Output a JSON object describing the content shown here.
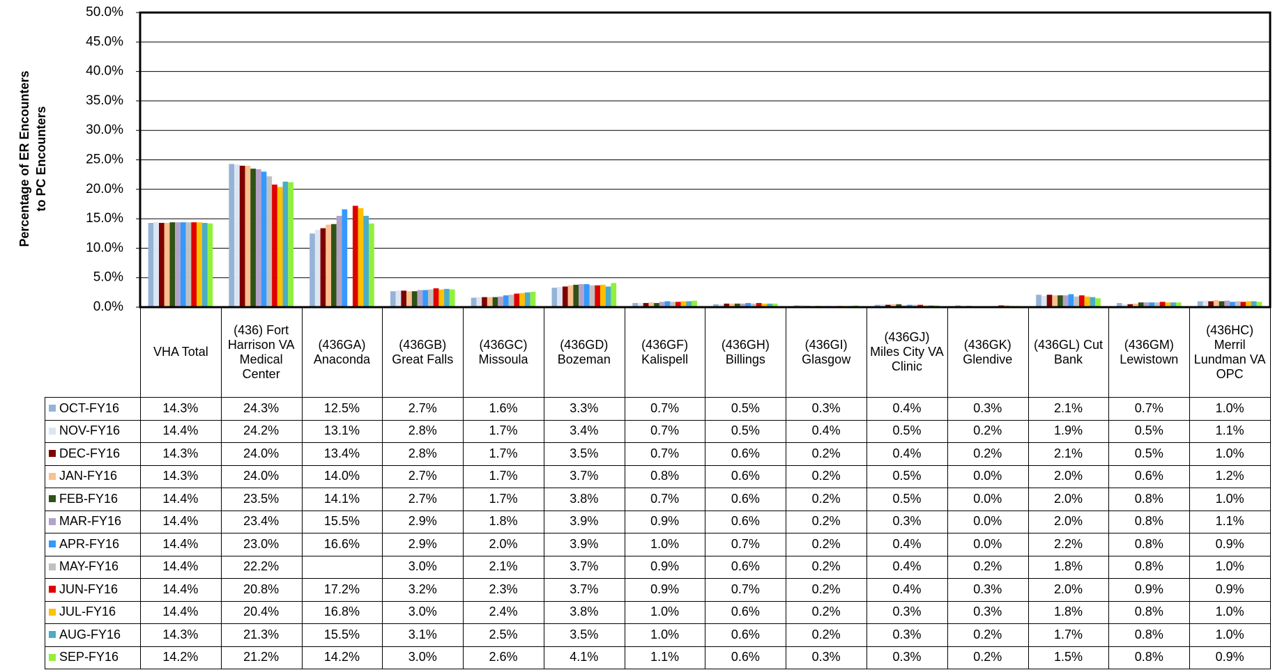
{
  "chart_data": {
    "type": "bar",
    "y_label": [
      "Percentage of ER Encounters",
      "to PC Encounters"
    ],
    "categories": [
      "VHA Total",
      "(436) Fort Harrison VA Medical Center",
      "(436GA) Anaconda",
      "(436GB) Great Falls",
      "(436GC) Missoula",
      "(436GD) Bozeman",
      "(436GF) Kalispell",
      "(436GH) Billings",
      "(436GI) Glasgow",
      "(436GJ) Miles City VA Clinic",
      "(436GK) Glendive",
      "(436GL) Cut Bank",
      "(436GM) Lewistown",
      "(436HC) Merril Lundman VA OPC"
    ],
    "ylim": [
      0,
      50
    ],
    "yticks": [
      {
        "value": 0,
        "label": "0.0%"
      },
      {
        "value": 5,
        "label": "5.0%"
      },
      {
        "value": 10,
        "label": "10.0%"
      },
      {
        "value": 15,
        "label": "15.0%"
      },
      {
        "value": 20,
        "label": "20.0%"
      },
      {
        "value": 25,
        "label": "25.0%"
      },
      {
        "value": 30,
        "label": "30.0%"
      },
      {
        "value": 35,
        "label": "35.0%"
      },
      {
        "value": 40,
        "label": "40.0%"
      },
      {
        "value": 45,
        "label": "45.0%"
      },
      {
        "value": 50,
        "label": "50.0%"
      }
    ],
    "grid": true,
    "series": [
      {
        "name": "OCT-FY16",
        "color": "#95b3d7",
        "values": [
          14.3,
          24.3,
          12.5,
          2.7,
          1.6,
          3.3,
          0.7,
          0.5,
          0.3,
          0.4,
          0.3,
          2.1,
          0.7,
          1.0
        ],
        "value_labels": [
          "14.3%",
          "24.3%",
          "12.5%",
          "2.7%",
          "1.6%",
          "3.3%",
          "0.7%",
          "0.5%",
          "0.3%",
          "0.4%",
          "0.3%",
          "2.1%",
          "0.7%",
          "1.0%"
        ]
      },
      {
        "name": "NOV-FY16",
        "color": "#dce6f2",
        "values": [
          14.4,
          24.2,
          13.1,
          2.8,
          1.7,
          3.4,
          0.7,
          0.5,
          0.4,
          0.5,
          0.2,
          1.9,
          0.5,
          1.1
        ],
        "value_labels": [
          "14.4%",
          "24.2%",
          "13.1%",
          "2.8%",
          "1.7%",
          "3.4%",
          "0.7%",
          "0.5%",
          "0.4%",
          "0.5%",
          "0.2%",
          "1.9%",
          "0.5%",
          "1.1%"
        ]
      },
      {
        "name": "DEC-FY16",
        "color": "#7f0000",
        "values": [
          14.3,
          24.0,
          13.4,
          2.8,
          1.7,
          3.5,
          0.7,
          0.6,
          0.2,
          0.4,
          0.2,
          2.1,
          0.5,
          1.0
        ],
        "value_labels": [
          "14.3%",
          "24.0%",
          "13.4%",
          "2.8%",
          "1.7%",
          "3.5%",
          "0.7%",
          "0.6%",
          "0.2%",
          "0.4%",
          "0.2%",
          "2.1%",
          "0.5%",
          "1.0%"
        ]
      },
      {
        "name": "JAN-FY16",
        "color": "#fac090",
        "values": [
          14.3,
          24.0,
          14.0,
          2.7,
          1.7,
          3.7,
          0.8,
          0.6,
          0.2,
          0.5,
          0.0,
          2.0,
          0.6,
          1.2
        ],
        "value_labels": [
          "14.3%",
          "24.0%",
          "14.0%",
          "2.7%",
          "1.7%",
          "3.7%",
          "0.8%",
          "0.6%",
          "0.2%",
          "0.5%",
          "0.0%",
          "2.0%",
          "0.6%",
          "1.2%"
        ]
      },
      {
        "name": "FEB-FY16",
        "color": "#2f5216",
        "values": [
          14.4,
          23.5,
          14.1,
          2.7,
          1.7,
          3.8,
          0.7,
          0.6,
          0.2,
          0.5,
          0.0,
          2.0,
          0.8,
          1.0
        ],
        "value_labels": [
          "14.4%",
          "23.5%",
          "14.1%",
          "2.7%",
          "1.7%",
          "3.8%",
          "0.7%",
          "0.6%",
          "0.2%",
          "0.5%",
          "0.0%",
          "2.0%",
          "0.8%",
          "1.0%"
        ]
      },
      {
        "name": "MAR-FY16",
        "color": "#b3a2c7",
        "values": [
          14.4,
          23.4,
          15.5,
          2.9,
          1.8,
          3.9,
          0.9,
          0.6,
          0.2,
          0.3,
          0.0,
          2.0,
          0.8,
          1.1
        ],
        "value_labels": [
          "14.4%",
          "23.4%",
          "15.5%",
          "2.9%",
          "1.8%",
          "3.9%",
          "0.9%",
          "0.6%",
          "0.2%",
          "0.3%",
          "0.0%",
          "2.0%",
          "0.8%",
          "1.1%"
        ]
      },
      {
        "name": "APR-FY16",
        "color": "#3399ff",
        "values": [
          14.4,
          23.0,
          16.6,
          2.9,
          2.0,
          3.9,
          1.0,
          0.7,
          0.2,
          0.4,
          0.0,
          2.2,
          0.8,
          0.9
        ],
        "value_labels": [
          "14.4%",
          "23.0%",
          "16.6%",
          "2.9%",
          "2.0%",
          "3.9%",
          "1.0%",
          "0.7%",
          "0.2%",
          "0.4%",
          "0.0%",
          "2.2%",
          "0.8%",
          "0.9%"
        ]
      },
      {
        "name": "MAY-FY16",
        "color": "#c0c0c0",
        "values": [
          14.4,
          22.2,
          null,
          3.0,
          2.1,
          3.7,
          0.9,
          0.6,
          0.2,
          0.4,
          0.2,
          1.8,
          0.8,
          1.0
        ],
        "value_labels": [
          "14.4%",
          "22.2%",
          null,
          "3.0%",
          "2.1%",
          "3.7%",
          "0.9%",
          "0.6%",
          "0.2%",
          "0.4%",
          "0.2%",
          "1.8%",
          "0.8%",
          "1.0%"
        ]
      },
      {
        "name": "JUN-FY16",
        "color": "#e00000",
        "values": [
          14.4,
          20.8,
          17.2,
          3.2,
          2.3,
          3.7,
          0.9,
          0.7,
          0.2,
          0.4,
          0.3,
          2.0,
          0.9,
          0.9
        ],
        "value_labels": [
          "14.4%",
          "20.8%",
          "17.2%",
          "3.2%",
          "2.3%",
          "3.7%",
          "0.9%",
          "0.7%",
          "0.2%",
          "0.4%",
          "0.3%",
          "2.0%",
          "0.9%",
          "0.9%"
        ]
      },
      {
        "name": "JUL-FY16",
        "color": "#ffc000",
        "values": [
          14.4,
          20.4,
          16.8,
          3.0,
          2.4,
          3.8,
          1.0,
          0.6,
          0.2,
          0.3,
          0.3,
          1.8,
          0.8,
          1.0
        ],
        "value_labels": [
          "14.4%",
          "20.4%",
          "16.8%",
          "3.0%",
          "2.4%",
          "3.8%",
          "1.0%",
          "0.6%",
          "0.2%",
          "0.3%",
          "0.3%",
          "1.8%",
          "0.8%",
          "1.0%"
        ]
      },
      {
        "name": "AUG-FY16",
        "color": "#4bacc6",
        "values": [
          14.3,
          21.3,
          15.5,
          3.1,
          2.5,
          3.5,
          1.0,
          0.6,
          0.2,
          0.3,
          0.2,
          1.7,
          0.8,
          1.0
        ],
        "value_labels": [
          "14.3%",
          "21.3%",
          "15.5%",
          "3.1%",
          "2.5%",
          "3.5%",
          "1.0%",
          "0.6%",
          "0.2%",
          "0.3%",
          "0.2%",
          "1.7%",
          "0.8%",
          "1.0%"
        ]
      },
      {
        "name": "SEP-FY16",
        "color": "#92f03c",
        "values": [
          14.2,
          21.2,
          14.2,
          3.0,
          2.6,
          4.1,
          1.1,
          0.6,
          0.3,
          0.3,
          0.2,
          1.5,
          0.8,
          0.9
        ],
        "value_labels": [
          "14.2%",
          "21.2%",
          "14.2%",
          "3.0%",
          "2.6%",
          "4.1%",
          "1.1%",
          "0.6%",
          "0.3%",
          "0.3%",
          "0.2%",
          "1.5%",
          "0.8%",
          "0.9%"
        ]
      }
    ]
  }
}
